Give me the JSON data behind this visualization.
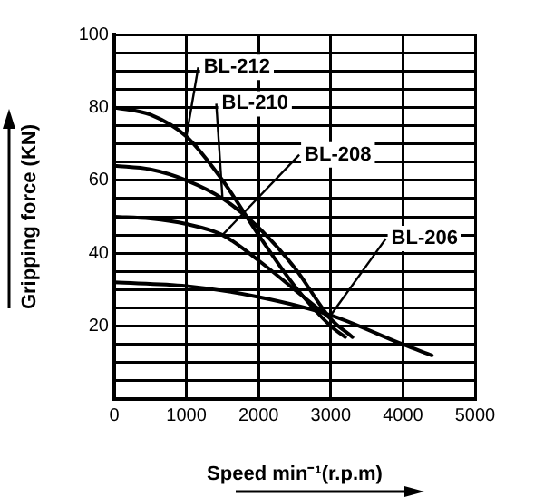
{
  "chart_data": {
    "type": "line",
    "xlabel": "Speed min⁻¹(r.p.m)",
    "ylabel": "Gripping force (KN)",
    "xlim": [
      0,
      5000
    ],
    "xticks": [
      0,
      1000,
      2000,
      3000,
      4000,
      5000
    ],
    "ylim": [
      0,
      100
    ],
    "yticks": [
      {
        "value": 0,
        "label": null
      },
      {
        "value": 5,
        "label": null
      },
      {
        "value": 10,
        "label": null
      },
      {
        "value": 15,
        "label": null
      },
      20,
      {
        "value": 25,
        "label": null
      },
      {
        "value": 30,
        "label": null
      },
      {
        "value": 35,
        "label": null
      },
      40,
      {
        "value": 45,
        "label": null
      },
      {
        "value": 50,
        "label": null
      },
      {
        "value": 55,
        "label": null
      },
      60,
      {
        "value": 65,
        "label": null
      },
      {
        "value": 70,
        "label": null
      },
      {
        "value": 75,
        "label": null
      },
      80,
      {
        "value": 85,
        "label": null
      },
      {
        "value": 90,
        "label": null
      },
      {
        "value": 95,
        "label": null
      },
      100
    ],
    "grid": true,
    "legend": false,
    "marker": "none",
    "line_style": "solid",
    "series": [
      {
        "name": "BL-212",
        "color": "#000000",
        "x": [
          0,
          500,
          1000,
          1500,
          2000,
          2500,
          3000,
          3200
        ],
        "values": [
          80,
          78,
          72,
          60,
          45,
          31,
          20,
          17
        ]
      },
      {
        "name": "BL-210",
        "color": "#000000",
        "x": [
          0,
          500,
          1000,
          1500,
          2000,
          2500,
          3000,
          3300
        ],
        "values": [
          64,
          63,
          60,
          55,
          47,
          36,
          22,
          17
        ]
      },
      {
        "name": "BL-208",
        "color": "#000000",
        "x": [
          0,
          500,
          1000,
          1500,
          2000,
          2500,
          3000
        ],
        "values": [
          50,
          49.5,
          48,
          45,
          38,
          30,
          22
        ]
      },
      {
        "name": "BL-206",
        "color": "#000000",
        "x": [
          0,
          1000,
          2000,
          3000,
          4000,
          4400
        ],
        "values": [
          32,
          31,
          28,
          23,
          15,
          12
        ]
      }
    ]
  }
}
